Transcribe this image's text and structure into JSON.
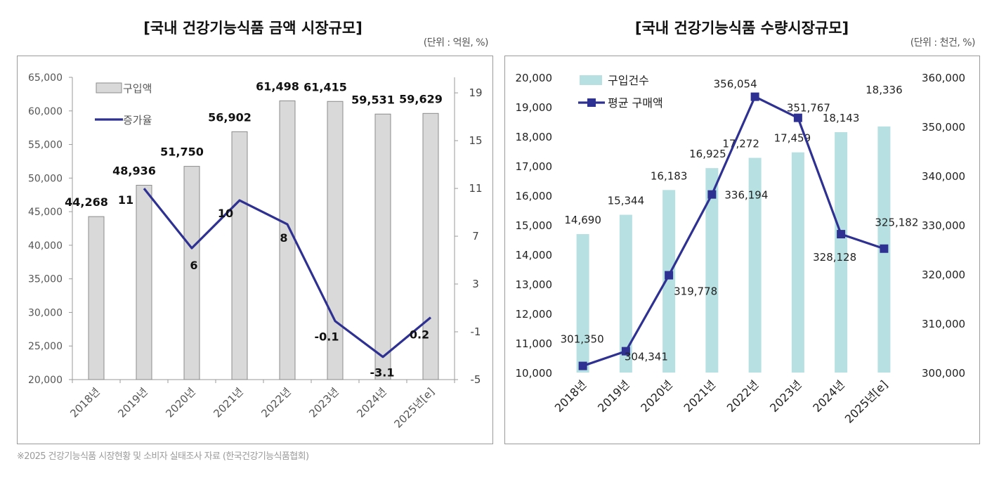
{
  "charts": [
    {
      "title": "[국내 건강기능식품 금액 시장규모]",
      "unit": "(단위 : 억원, %)"
    },
    {
      "title": "[국내 건강기능식품 수량시장규모]",
      "unit": "(단위 : 천건, %)"
    }
  ],
  "source": "※2025 건강기능식품 시장현황 및 소비자 실태조사 자료 (한국건강기능식품협회)",
  "chart_data": [
    {
      "type": "bar",
      "title": "[국내 건강기능식품 금액 시장규모]",
      "categories": [
        "2018년",
        "2019년",
        "2020년",
        "2021년",
        "2022년",
        "2023년",
        "2024년",
        "2025년[e]"
      ],
      "series": [
        {
          "name": "구입액",
          "type": "bar",
          "axis": "left",
          "values": [
            44268,
            48936,
            51750,
            56902,
            61498,
            61415,
            59531,
            59629
          ],
          "labels": [
            "44,268",
            "48,936",
            "51,750",
            "56,902",
            "61,498",
            "61,415",
            "59,531",
            "59,629"
          ]
        },
        {
          "name": "증가율",
          "type": "line",
          "axis": "right",
          "values": [
            null,
            11,
            6,
            10,
            8,
            -0.1,
            -3.1,
            0.2
          ],
          "labels": [
            "",
            "11",
            "6",
            "10",
            "8",
            "-0.1",
            "-3.1",
            "0.2"
          ]
        }
      ],
      "y_left": {
        "range": [
          20000,
          65000
        ],
        "ticks": [
          20000,
          25000,
          30000,
          35000,
          40000,
          45000,
          50000,
          55000,
          60000,
          65000
        ],
        "tick_labels": [
          "20,000",
          "25,000",
          "30,000",
          "35,000",
          "40,000",
          "45,000",
          "50,000",
          "55,000",
          "60,000",
          "65,000"
        ]
      },
      "y_right": {
        "range": [
          -5,
          20.3
        ],
        "ticks": [
          -5,
          -1,
          3,
          7,
          11,
          15,
          19
        ],
        "tick_labels": [
          "-5",
          "-1",
          "3",
          "7",
          "11",
          "15",
          "19"
        ]
      },
      "legend_position": "top-left",
      "colors": {
        "bar": "#d9d9d9",
        "bar_stroke": "#8c8c8c",
        "line": "#2e3191"
      }
    },
    {
      "type": "bar",
      "title": "[국내 건강기능식품 수량시장규모]",
      "categories": [
        "2018년",
        "2019년",
        "2020년",
        "2021년",
        "2022년",
        "2023년",
        "2024년",
        "2025년[e]"
      ],
      "series": [
        {
          "name": "구입건수",
          "type": "bar",
          "axis": "left",
          "values": [
            14690,
            15344,
            16183,
            16925,
            17272,
            17459,
            18143,
            18336
          ],
          "labels": [
            "14,690",
            "15,344",
            "16,183",
            "16,925",
            "17,272",
            "17,459",
            "18,143",
            "18,336"
          ]
        },
        {
          "name": "평균 구매액",
          "type": "line",
          "axis": "right",
          "values": [
            301350,
            304341,
            319778,
            336194,
            356054,
            351767,
            328128,
            325182
          ],
          "labels": [
            "301,350",
            "304,341",
            "319,778",
            "336,194",
            "356,054",
            "351,767",
            "328,128",
            "325,182"
          ]
        }
      ],
      "y_left": {
        "range": [
          10000,
          20000
        ],
        "ticks": [
          10000,
          11000,
          12000,
          13000,
          14000,
          15000,
          16000,
          17000,
          18000,
          19000,
          20000
        ],
        "tick_labels": [
          "10,000",
          "11,000",
          "12,000",
          "13,000",
          "14,000",
          "15,000",
          "16,000",
          "17,000",
          "18,000",
          "19,000",
          "20,000"
        ]
      },
      "y_right": {
        "range": [
          300000,
          360000
        ],
        "ticks": [
          300000,
          310000,
          320000,
          330000,
          340000,
          350000,
          360000
        ],
        "tick_labels": [
          "300,000",
          "310,000",
          "320,000",
          "330,000",
          "340,000",
          "350,000",
          "360,000"
        ]
      },
      "legend_position": "top-left",
      "colors": {
        "bar": "#b7e0e2",
        "line": "#2e3191"
      }
    }
  ]
}
